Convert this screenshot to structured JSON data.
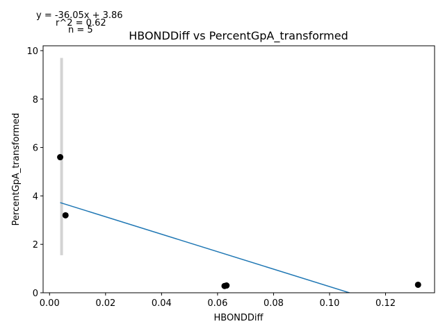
{
  "chart_data": {
    "type": "scatter",
    "title": "HBONDDiff vs PercentGpA_transformed",
    "xlabel": "HBONDDiff",
    "ylabel": "PercentGpA_transformed",
    "xlim": [
      -0.0023,
      0.1375
    ],
    "ylim": [
      0,
      10.2
    ],
    "xticks": [
      0.0,
      0.02,
      0.04,
      0.06,
      0.08,
      0.1,
      0.12
    ],
    "xtick_labels": [
      "0.00",
      "0.02",
      "0.04",
      "0.06",
      "0.08",
      "0.10",
      "0.12"
    ],
    "yticks": [
      0,
      2,
      4,
      6,
      8,
      10
    ],
    "ytick_labels": [
      "0",
      "2",
      "4",
      "6",
      "8",
      "10"
    ],
    "grid": false,
    "points": [
      {
        "x": 0.0038,
        "y": 5.6
      },
      {
        "x": 0.0057,
        "y": 3.2
      },
      {
        "x": 0.0625,
        "y": 0.28
      },
      {
        "x": 0.0632,
        "y": 0.3
      },
      {
        "x": 0.1316,
        "y": 0.33
      }
    ],
    "fit_line": {
      "slope": -36.05,
      "intercept": 3.86,
      "x_start": 0.0038,
      "x_end": 0.1316
    },
    "error_bar": {
      "x": 0.0043,
      "y_low": 1.55,
      "y_high": 9.7
    },
    "annotations": {
      "equation": "y = -36.05x + 3.86",
      "r2": "r^2 = 0.62",
      "n": "n = 5"
    },
    "colors": {
      "points": "#000000",
      "fit_line": "#1f77b4",
      "error_bar": "#d3d3d3"
    }
  }
}
